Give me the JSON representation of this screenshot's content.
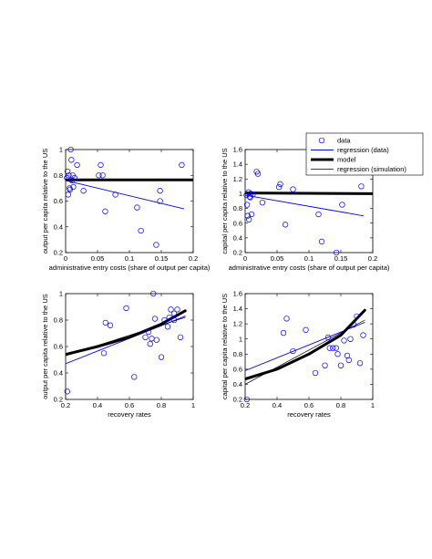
{
  "legend": {
    "entries": [
      {
        "label": "data",
        "kind": "marker",
        "color": "#0000ff"
      },
      {
        "label": "regression (data)",
        "kind": "thin",
        "color": "#0000ff"
      },
      {
        "label": "model",
        "kind": "thick",
        "color": "#000000"
      },
      {
        "label": "regression (simulation)",
        "kind": "thinblack",
        "color": "#000000"
      }
    ],
    "placement": "top-right"
  },
  "chart_data": [
    {
      "type": "scatter",
      "xlabel": "administrative entry costs (share of output per capita)",
      "ylabel": "output per capita relative to the US",
      "xlim": [
        0,
        0.2
      ],
      "ylim": [
        0.2,
        1.0
      ],
      "xticks": [
        "0",
        "0.05",
        "0.1",
        "0.15",
        "0.2"
      ],
      "yticks": [
        "0.2",
        "0.4",
        "0.6",
        "0.8",
        "1"
      ],
      "x_tick_values": [
        0,
        0.05,
        0.1,
        0.15,
        0.2
      ],
      "y_tick_values": [
        0.2,
        0.4,
        0.6,
        0.8,
        1.0
      ],
      "points": [
        [
          0.002,
          0.78
        ],
        [
          0.003,
          0.83
        ],
        [
          0.004,
          0.65
        ],
        [
          0.005,
          0.8
        ],
        [
          0.006,
          0.7
        ],
        [
          0.007,
          0.69
        ],
        [
          0.008,
          1.0
        ],
        [
          0.009,
          0.92
        ],
        [
          0.01,
          0.76
        ],
        [
          0.011,
          0.8
        ],
        [
          0.012,
          0.71
        ],
        [
          0.014,
          0.78
        ],
        [
          0.018,
          0.88
        ],
        [
          0.028,
          0.68
        ],
        [
          0.052,
          0.8
        ],
        [
          0.055,
          0.88
        ],
        [
          0.058,
          0.8
        ],
        [
          0.062,
          0.52
        ],
        [
          0.078,
          0.65
        ],
        [
          0.112,
          0.55
        ],
        [
          0.118,
          0.37
        ],
        [
          0.142,
          0.26
        ],
        [
          0.148,
          0.6
        ],
        [
          0.148,
          0.68
        ],
        [
          0.182,
          0.88
        ]
      ],
      "lines": [
        {
          "kind": "thin",
          "color": "#0000ff",
          "points": [
            [
              0,
              0.76
            ],
            [
              0.185,
              0.54
            ]
          ]
        },
        {
          "kind": "thick",
          "color": "#000000",
          "points": [
            [
              0,
              0.765
            ],
            [
              0.2,
              0.765
            ]
          ]
        },
        {
          "kind": "thinblack",
          "color": "#000000",
          "points": [
            [
              0,
              0.768
            ],
            [
              0.2,
              0.768
            ]
          ]
        }
      ]
    },
    {
      "type": "scatter",
      "xlabel": "administrative entry costs (share of output per capita)",
      "ylabel": "capital per capita relative to the US",
      "xlim": [
        0,
        0.2
      ],
      "ylim": [
        0.2,
        1.6
      ],
      "xticks": [
        "0",
        "0.05",
        "0.1",
        "0.15",
        "0.2"
      ],
      "yticks": [
        "0.2",
        "0.4",
        "0.6",
        "0.8",
        "1",
        "1.2",
        "1.4",
        "1.6"
      ],
      "x_tick_values": [
        0,
        0.05,
        0.1,
        0.15,
        0.2
      ],
      "y_tick_values": [
        0.2,
        0.4,
        0.6,
        0.8,
        1.0,
        1.2,
        1.4,
        1.6
      ],
      "points": [
        [
          0.002,
          0.98
        ],
        [
          0.003,
          0.85
        ],
        [
          0.004,
          0.7
        ],
        [
          0.005,
          1.02
        ],
        [
          0.006,
          0.65
        ],
        [
          0.007,
          0.96
        ],
        [
          0.008,
          0.95
        ],
        [
          0.009,
          1.0
        ],
        [
          0.01,
          0.72
        ],
        [
          0.012,
          0.99
        ],
        [
          0.018,
          1.3
        ],
        [
          0.02,
          1.27
        ],
        [
          0.027,
          0.88
        ],
        [
          0.053,
          1.09
        ],
        [
          0.055,
          1.13
        ],
        [
          0.063,
          0.58
        ],
        [
          0.075,
          1.06
        ],
        [
          0.115,
          0.72
        ],
        [
          0.12,
          0.35
        ],
        [
          0.143,
          0.2
        ],
        [
          0.152,
          0.85
        ],
        [
          0.182,
          1.1
        ]
      ],
      "lines": [
        {
          "kind": "thin",
          "color": "#0000ff",
          "points": [
            [
              0,
              0.98
            ],
            [
              0.185,
              0.7
            ]
          ]
        },
        {
          "kind": "thick",
          "color": "#000000",
          "points": [
            [
              0,
              1.01
            ],
            [
              0.2,
              1.0
            ]
          ]
        },
        {
          "kind": "thinblack",
          "color": "#000000",
          "points": [
            [
              0,
              1.01
            ],
            [
              0.2,
              1.0
            ]
          ]
        }
      ]
    },
    {
      "type": "scatter",
      "xlabel": "recovery rates",
      "ylabel": "output per capita relative to the US",
      "xlim": [
        0.2,
        1.0
      ],
      "ylim": [
        0.2,
        1.0
      ],
      "xticks": [
        "0.2",
        "0.4",
        "0.6",
        "0.8",
        "1"
      ],
      "yticks": [
        "0.2",
        "0.4",
        "0.6",
        "0.8",
        "1"
      ],
      "x_tick_values": [
        0.2,
        0.4,
        0.6,
        0.8,
        1.0
      ],
      "y_tick_values": [
        0.2,
        0.4,
        0.6,
        0.8,
        1.0
      ],
      "points": [
        [
          0.21,
          0.26
        ],
        [
          0.44,
          0.55
        ],
        [
          0.45,
          0.78
        ],
        [
          0.48,
          0.76
        ],
        [
          0.58,
          0.89
        ],
        [
          0.63,
          0.37
        ],
        [
          0.7,
          0.67
        ],
        [
          0.72,
          0.71
        ],
        [
          0.73,
          0.62
        ],
        [
          0.74,
          0.66
        ],
        [
          0.75,
          1.0
        ],
        [
          0.76,
          0.81
        ],
        [
          0.77,
          0.65
        ],
        [
          0.8,
          0.52
        ],
        [
          0.82,
          0.8
        ],
        [
          0.84,
          0.75
        ],
        [
          0.85,
          0.82
        ],
        [
          0.86,
          0.88
        ],
        [
          0.88,
          0.8
        ],
        [
          0.88,
          0.85
        ],
        [
          0.9,
          0.88
        ],
        [
          0.92,
          0.67
        ]
      ],
      "lines": [
        {
          "kind": "thin",
          "color": "#0000ff",
          "points": [
            [
              0.2,
              0.47
            ],
            [
              0.95,
              0.83
            ]
          ]
        },
        {
          "kind": "thick",
          "color": "#000000",
          "points": [
            [
              0.2,
              0.54
            ],
            [
              0.4,
              0.6
            ],
            [
              0.6,
              0.67
            ],
            [
              0.8,
              0.77
            ],
            [
              0.95,
              0.87
            ]
          ]
        },
        {
          "kind": "thinblack",
          "color": "#000000",
          "points": [
            [
              0.2,
              0.53
            ],
            [
              0.95,
              0.82
            ]
          ]
        }
      ]
    },
    {
      "type": "scatter",
      "xlabel": "recovery rates",
      "ylabel": "capital per capita relative to the US",
      "xlim": [
        0.2,
        1.0
      ],
      "ylim": [
        0.2,
        1.6
      ],
      "xticks": [
        "0.2",
        "0.4",
        "0.6",
        "0.8",
        "1"
      ],
      "yticks": [
        "0.2",
        "0.4",
        "0.6",
        "0.8",
        "1",
        "1.2",
        "1.4",
        "1.6"
      ],
      "x_tick_values": [
        0.2,
        0.4,
        0.6,
        0.8,
        1.0
      ],
      "y_tick_values": [
        0.2,
        0.4,
        0.6,
        0.8,
        1.0,
        1.2,
        1.4,
        1.6
      ],
      "points": [
        [
          0.21,
          0.2
        ],
        [
          0.44,
          1.08
        ],
        [
          0.46,
          1.27
        ],
        [
          0.5,
          0.84
        ],
        [
          0.58,
          1.12
        ],
        [
          0.64,
          0.55
        ],
        [
          0.7,
          0.65
        ],
        [
          0.72,
          1.02
        ],
        [
          0.73,
          0.88
        ],
        [
          0.75,
          0.88
        ],
        [
          0.77,
          0.88
        ],
        [
          0.78,
          0.8
        ],
        [
          0.8,
          0.65
        ],
        [
          0.82,
          0.98
        ],
        [
          0.84,
          0.78
        ],
        [
          0.85,
          0.72
        ],
        [
          0.86,
          1.0
        ],
        [
          0.88,
          1.19
        ],
        [
          0.9,
          1.3
        ],
        [
          0.92,
          0.68
        ],
        [
          0.94,
          1.05
        ]
      ],
      "lines": [
        {
          "kind": "thin",
          "color": "#0000ff",
          "points": [
            [
              0.2,
              0.58
            ],
            [
              0.95,
              1.22
            ]
          ]
        },
        {
          "kind": "thick",
          "color": "#000000",
          "points": [
            [
              0.2,
              0.47
            ],
            [
              0.4,
              0.6
            ],
            [
              0.6,
              0.8
            ],
            [
              0.8,
              1.05
            ],
            [
              0.95,
              1.38
            ]
          ]
        },
        {
          "kind": "thinblack",
          "color": "#000000",
          "points": [
            [
              0.2,
              0.4
            ],
            [
              0.95,
              1.25
            ]
          ]
        }
      ]
    }
  ]
}
